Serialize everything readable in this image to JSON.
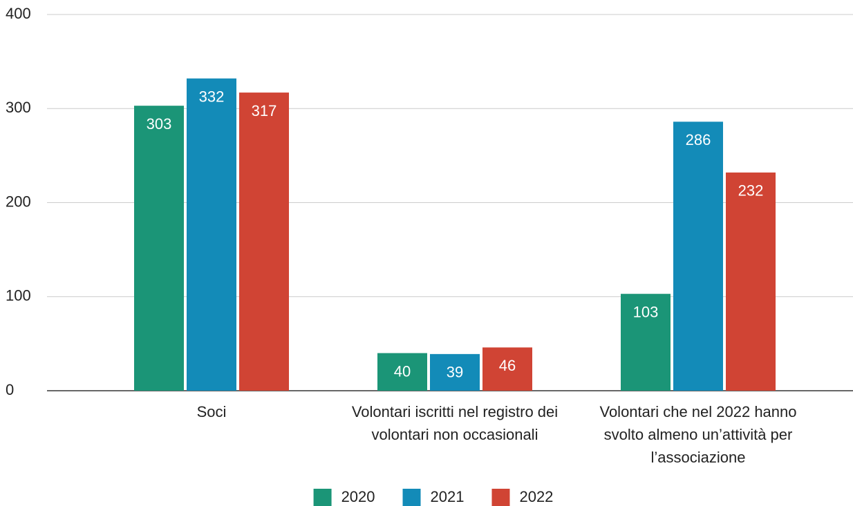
{
  "chart_data": {
    "type": "bar",
    "categories": [
      "Soci",
      "Volontari iscritti nel registro dei volontari non occasionali",
      "Volontari che nel 2022 hanno svolto almeno un’attività per l’associazione"
    ],
    "series": [
      {
        "name": "2020",
        "color": "#1b9577",
        "values": [
          303,
          40,
          103
        ]
      },
      {
        "name": "2021",
        "color": "#138bb8",
        "values": [
          332,
          39,
          286
        ]
      },
      {
        "name": "2022",
        "color": "#d04434",
        "values": [
          317,
          46,
          232
        ]
      }
    ],
    "ylim": [
      0,
      400
    ],
    "yticks": [
      0,
      100,
      200,
      300,
      400
    ],
    "grid": true,
    "legend": "bottom"
  }
}
